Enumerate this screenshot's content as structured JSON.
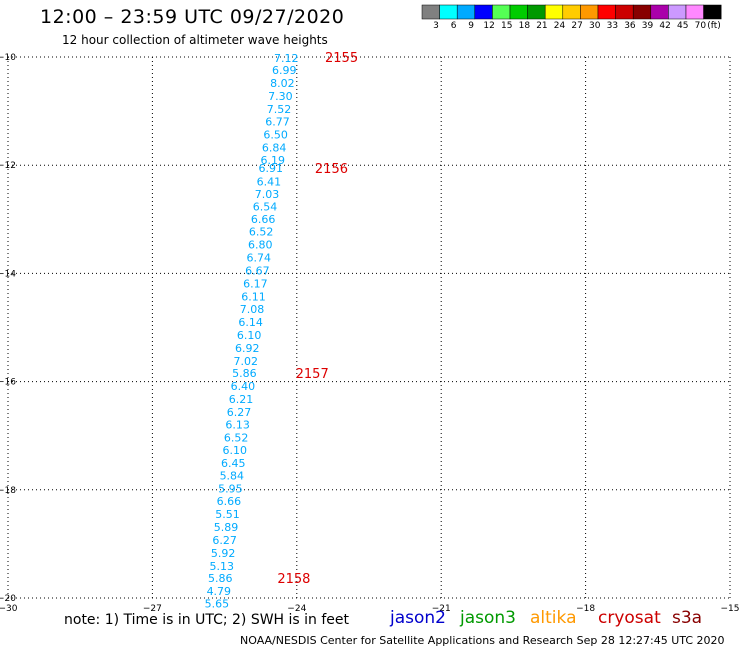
{
  "header": {
    "title": "12:00 – 23:59 UTC 09/27/2020",
    "subtitle": "12 hour collection of altimeter wave heights"
  },
  "colorbar": {
    "colors": [
      "#808080",
      "#00ffff",
      "#00aaff",
      "#0000ff",
      "#55ff55",
      "#00cc00",
      "#009900",
      "#ffff00",
      "#ffcc00",
      "#ff9900",
      "#ff0000",
      "#cc0000",
      "#880000",
      "#aa00aa",
      "#cc99ff",
      "#ff88ff",
      "#000000"
    ],
    "labels": [
      "3",
      "6",
      "9",
      "12",
      "15",
      "18",
      "21",
      "24",
      "27",
      "30",
      "33",
      "36",
      "39",
      "42",
      "45",
      "70",
      "(ft)"
    ]
  },
  "footer": {
    "note": "note:  1) Time is in UTC;  2) SWH is in feet",
    "credit": "NOAA/NESDIS Center for Satellite Applications and Research    Sep 28 12:27:45 UTC 2020",
    "satellites": [
      {
        "name": "jason2",
        "color": "#0000cc"
      },
      {
        "name": "jason3",
        "color": "#009900"
      },
      {
        "name": "altika",
        "color": "#ff9900"
      },
      {
        "name": "cryosat",
        "color": "#cc0000"
      },
      {
        "name": "s3a",
        "color": "#880000"
      }
    ]
  },
  "chart_data": {
    "type": "scatter",
    "title": "12:00 – 23:59 UTC 09/27/2020",
    "xlim": [
      -30,
      -15
    ],
    "ylim": [
      -20,
      -10
    ],
    "xticks": [
      -30,
      -27,
      -24,
      -21,
      -18,
      -15
    ],
    "yticks": [
      -10,
      -12,
      -14,
      -16,
      -18,
      -20
    ],
    "grid": true,
    "point_color": "#00aaff",
    "time_color": "#dd0000",
    "points": [
      {
        "lon": -24.22,
        "lat": -10.02,
        "v": "7.12"
      },
      {
        "lon": -24.26,
        "lat": -10.24,
        "v": "6.99"
      },
      {
        "lon": -24.3,
        "lat": -10.48,
        "v": "8.02"
      },
      {
        "lon": -24.34,
        "lat": -10.72,
        "v": "7.30"
      },
      {
        "lon": -24.37,
        "lat": -10.96,
        "v": "7.52"
      },
      {
        "lon": -24.4,
        "lat": -11.19,
        "v": "6.77"
      },
      {
        "lon": -24.44,
        "lat": -11.43,
        "v": "6.50"
      },
      {
        "lon": -24.47,
        "lat": -11.67,
        "v": "6.84"
      },
      {
        "lon": -24.5,
        "lat": -11.9,
        "v": "6.19"
      },
      {
        "lon": -24.54,
        "lat": -12.05,
        "v": "6.91"
      },
      {
        "lon": -24.58,
        "lat": -12.3,
        "v": "6.41"
      },
      {
        "lon": -24.62,
        "lat": -12.53,
        "v": "7.03"
      },
      {
        "lon": -24.66,
        "lat": -12.76,
        "v": "6.54"
      },
      {
        "lon": -24.7,
        "lat": -12.99,
        "v": "6.66"
      },
      {
        "lon": -24.74,
        "lat": -13.23,
        "v": "6.52"
      },
      {
        "lon": -24.76,
        "lat": -13.47,
        "v": "6.80"
      },
      {
        "lon": -24.79,
        "lat": -13.71,
        "v": "6.74"
      },
      {
        "lon": -24.82,
        "lat": -13.95,
        "v": "6.67"
      },
      {
        "lon": -24.86,
        "lat": -14.19,
        "v": "6.17"
      },
      {
        "lon": -24.9,
        "lat": -14.43,
        "v": "6.11"
      },
      {
        "lon": -24.93,
        "lat": -14.66,
        "v": "7.08"
      },
      {
        "lon": -24.96,
        "lat": -14.9,
        "v": "6.14"
      },
      {
        "lon": -24.99,
        "lat": -15.14,
        "v": "6.10"
      },
      {
        "lon": -25.03,
        "lat": -15.38,
        "v": "6.92"
      },
      {
        "lon": -25.06,
        "lat": -15.62,
        "v": "7.02"
      },
      {
        "lon": -25.09,
        "lat": -15.84,
        "v": "5.86"
      },
      {
        "lon": -25.12,
        "lat": -16.08,
        "v": "6.40"
      },
      {
        "lon": -25.16,
        "lat": -16.32,
        "v": "6.21"
      },
      {
        "lon": -25.2,
        "lat": -16.56,
        "v": "6.27"
      },
      {
        "lon": -25.23,
        "lat": -16.79,
        "v": "6.13"
      },
      {
        "lon": -25.26,
        "lat": -17.03,
        "v": "6.52"
      },
      {
        "lon": -25.29,
        "lat": -17.26,
        "v": "6.10"
      },
      {
        "lon": -25.32,
        "lat": -17.5,
        "v": "6.45"
      },
      {
        "lon": -25.35,
        "lat": -17.74,
        "v": "5.84"
      },
      {
        "lon": -25.38,
        "lat": -17.98,
        "v": "5.95"
      },
      {
        "lon": -25.41,
        "lat": -18.21,
        "v": "6.66"
      },
      {
        "lon": -25.44,
        "lat": -18.45,
        "v": "5.51"
      },
      {
        "lon": -25.47,
        "lat": -18.69,
        "v": "5.89"
      },
      {
        "lon": -25.5,
        "lat": -18.93,
        "v": "6.27"
      },
      {
        "lon": -25.53,
        "lat": -19.17,
        "v": "5.92"
      },
      {
        "lon": -25.56,
        "lat": -19.41,
        "v": "5.13"
      },
      {
        "lon": -25.59,
        "lat": -19.63,
        "v": "5.86"
      },
      {
        "lon": -25.62,
        "lat": -19.87,
        "v": "4.79"
      },
      {
        "lon": -25.66,
        "lat": -20.1,
        "v": "5.65"
      }
    ],
    "time_labels": [
      {
        "lon": -23.07,
        "lat": -10.0,
        "text": "2155"
      },
      {
        "lon": -23.28,
        "lat": -12.05,
        "text": "2156"
      },
      {
        "lon": -23.68,
        "lat": -15.84,
        "text": "2157"
      },
      {
        "lon": -24.06,
        "lat": -19.63,
        "text": "2158"
      }
    ]
  }
}
